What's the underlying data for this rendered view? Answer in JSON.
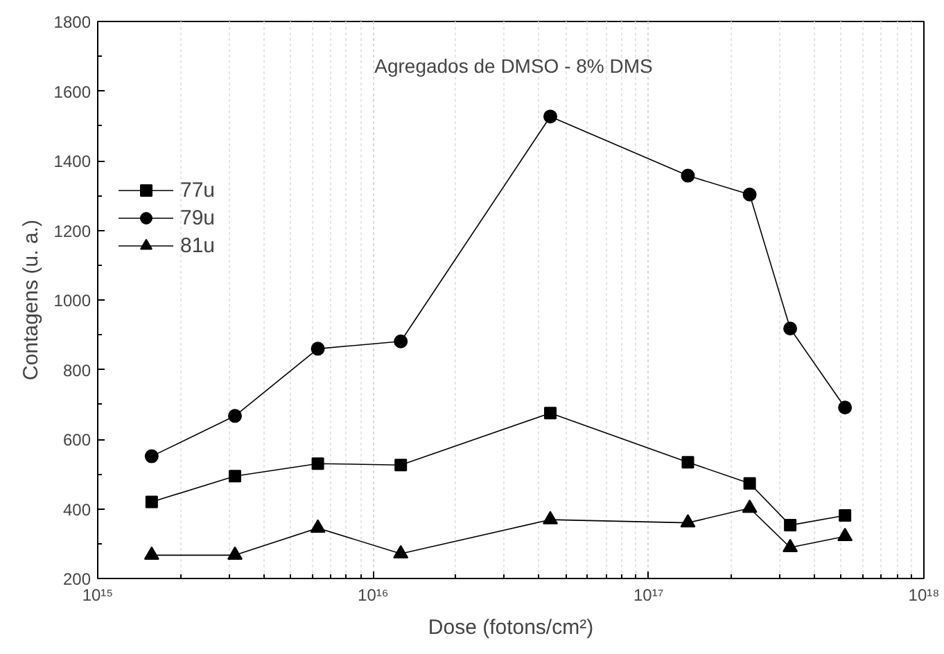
{
  "chart_data": {
    "type": "line",
    "title": "Agregados de DMSO - 8% DMS",
    "xlabel": "Dose (fotons/cm²)",
    "ylabel": "Contagens (u. a.)",
    "log": "x",
    "grid": "x",
    "legend": "top left",
    "line_style": "solid",
    "x": [
      1570000000000000.0,
      3150000000000000.0,
      6300000000000000.0,
      1.26e+16,
      4.4e+16,
      1.39e+17,
      2.33e+17,
      3.27e+17,
      5.17e+17
    ],
    "xlim": [
      1000000000000000.0,
      1e+18
    ],
    "xticks": [
      {
        "value": 1000000000000000.0,
        "label": "10¹⁵"
      },
      {
        "value": 1e+16,
        "label": "10¹⁶"
      },
      {
        "value": 1e+17,
        "label": "10¹⁷"
      },
      {
        "value": 1e+18,
        "label": "10¹⁸"
      }
    ],
    "ylim": [
      200,
      1800
    ],
    "yticks": [
      200,
      400,
      600,
      800,
      1000,
      1200,
      1400,
      1600,
      1800
    ],
    "series": [
      {
        "name": "77u",
        "color": "#000000",
        "marker": "square",
        "values": [
          420,
          494,
          530,
          526,
          675,
          534,
          473,
          353,
          381
        ]
      },
      {
        "name": "79u",
        "color": "#000000",
        "marker": "circle",
        "values": [
          551,
          667,
          860,
          881,
          1527,
          1357,
          1303,
          918,
          691
        ]
      },
      {
        "name": "81u",
        "color": "#000000",
        "marker": "triangle",
        "values": [
          267,
          267,
          345,
          271,
          369,
          360,
          402,
          289,
          321
        ]
      }
    ]
  }
}
